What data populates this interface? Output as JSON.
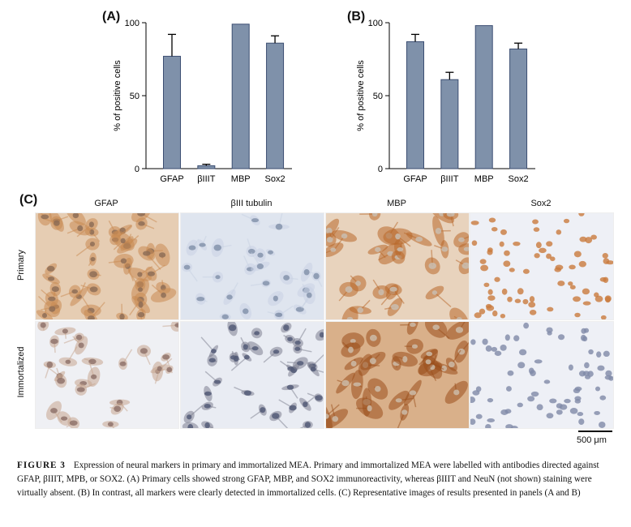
{
  "panels": {
    "A": {
      "label": "(A)"
    },
    "B": {
      "label": "(B)"
    },
    "C": {
      "label": "(C)"
    }
  },
  "chart_data": [
    {
      "type": "bar",
      "panel": "(A)",
      "ylabel": "% of positive cells",
      "ylim": [
        0,
        100
      ],
      "yticks": [
        0,
        50,
        100
      ],
      "categories": [
        "GFAP",
        "βIIIT",
        "MBP",
        "Sox2"
      ],
      "values": [
        77,
        2,
        99,
        86
      ],
      "errors": [
        15,
        1,
        0,
        5
      ],
      "bar_color": "#7f91aa"
    },
    {
      "type": "bar",
      "panel": "(B)",
      "ylabel": "% of positive cells",
      "ylim": [
        0,
        100
      ],
      "yticks": [
        0,
        50,
        100
      ],
      "categories": [
        "GFAP",
        "βIIIT",
        "MBP",
        "Sox2"
      ],
      "values": [
        87,
        61,
        98,
        82
      ],
      "errors": [
        5,
        5,
        0,
        4
      ],
      "bar_color": "#7f91aa"
    }
  ],
  "micrographs": {
    "columns": [
      "GFAP",
      "βIII tubulin",
      "MBP",
      "Sox2"
    ],
    "rows": [
      "Primary",
      "Immortalized"
    ],
    "scale_bar": "500 μm",
    "tiles": [
      {
        "row": 0,
        "col": 0,
        "bg": "#e6cdb3",
        "cell": "#c98a52",
        "nucleus": "#8a6a55",
        "kind": "sheet"
      },
      {
        "row": 0,
        "col": 1,
        "bg": "#dfe5ef",
        "cell": "#c8d2e3",
        "nucleus": "#7f8ea8",
        "kind": "sparse"
      },
      {
        "row": 0,
        "col": 2,
        "bg": "#e8d3bd",
        "cell": "#b8672a",
        "nucleus": "#c9c0b5",
        "kind": "brown"
      },
      {
        "row": 0,
        "col": 3,
        "bg": "#eef0f6",
        "cell": "#c97a3d",
        "nucleus": "#c97a3d",
        "kind": "nuclei"
      },
      {
        "row": 1,
        "col": 0,
        "bg": "#eff0f4",
        "cell": "#c7a68f",
        "nucleus": "#8b6e66",
        "kind": "sparse"
      },
      {
        "row": 1,
        "col": 1,
        "bg": "#e9ecf3",
        "cell": "#7d7f8f",
        "nucleus": "#4e5673",
        "kind": "dark"
      },
      {
        "row": 1,
        "col": 2,
        "bg": "#d9b08a",
        "cell": "#9a4f1c",
        "nucleus": "#cdbfae",
        "kind": "brown"
      },
      {
        "row": 1,
        "col": 3,
        "bg": "#eef0f6",
        "cell": "#b49a8c",
        "nucleus": "#7f8aa8",
        "kind": "nuclei"
      }
    ]
  },
  "caption": {
    "figure_label": "FIGURE 3",
    "text": "Expression of neural markers in primary and immortalized MEA. Primary and immortalized MEA were labelled with antibodies directed against GFAP, βIIIT, MPB, or SOX2. (A) Primary cells showed strong GFAP, MBP, and SOX2 immunoreactivity, whereas βIIIT and NeuN (not shown) staining were virtually absent. (B) In contrast, all markers were clearly detected in immortalized cells. (C) Representative images of results presented in panels (A and B)"
  }
}
